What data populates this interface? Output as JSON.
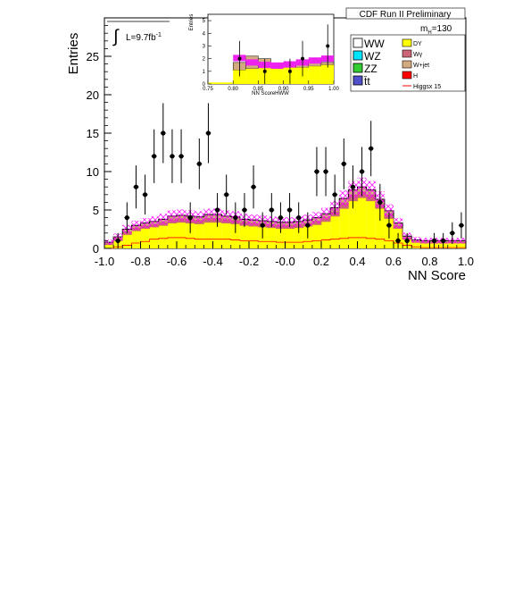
{
  "chart_data": {
    "type": "histogram",
    "header": "CDF Run II Preliminary",
    "luminosity": {
      "label": "L=9.7fb",
      "exponent": "-1"
    },
    "mass_label": {
      "m": "m",
      "sub": "H",
      "value": "=130"
    },
    "xlabel": "NN Score",
    "ylabel": "Entries",
    "xlim": [
      -1.0,
      1.0
    ],
    "ylim": [
      0,
      30
    ],
    "xticks": [
      "-1.0",
      "-0.8",
      "-0.6",
      "-0.4",
      "-0.2",
      "-0.0",
      "0.2",
      "0.4",
      "0.6",
      "0.8",
      "1.0"
    ],
    "yticks": [
      "0",
      "5",
      "10",
      "15",
      "20",
      "25"
    ],
    "bins": 40,
    "stack_total": [
      0.8,
      1.5,
      2.5,
      3.0,
      3.3,
      3.5,
      3.8,
      4.2,
      4.3,
      4.2,
      4.1,
      4.4,
      4.4,
      4.2,
      4.1,
      3.8,
      3.7,
      3.6,
      3.5,
      3.4,
      3.4,
      3.5,
      3.7,
      4.0,
      4.5,
      5.3,
      6.5,
      7.6,
      8.0,
      7.6,
      6.4,
      4.9,
      3.3,
      1.6,
      1.1,
      1.0,
      1.0,
      1.0,
      1.0,
      1.0
    ],
    "dy": [
      0.5,
      1.0,
      1.8,
      2.3,
      2.6,
      2.8,
      3.0,
      3.3,
      3.4,
      3.3,
      3.2,
      3.4,
      3.4,
      3.3,
      3.2,
      3.0,
      2.9,
      2.8,
      2.7,
      2.6,
      2.6,
      2.7,
      2.9,
      3.1,
      3.5,
      4.2,
      5.2,
      6.2,
      6.6,
      6.2,
      5.2,
      3.9,
      2.6,
      1.2,
      0.8,
      0.7,
      0.7,
      0.7,
      0.7,
      0.7
    ],
    "signal": [
      0.0,
      0.2,
      0.4,
      0.7,
      0.9,
      1.2,
      1.3,
      1.4,
      1.4,
      1.3,
      1.2,
      1.2,
      1.2,
      1.2,
      1.1,
      1.0,
      1.0,
      0.9,
      0.9,
      0.8,
      0.8,
      0.8,
      0.9,
      1.0,
      1.1,
      1.2,
      1.3,
      1.4,
      1.4,
      1.3,
      1.2,
      1.0,
      0.7,
      0.4,
      0.2,
      0.1,
      0.1,
      0.1,
      0.1,
      0.1
    ],
    "data_points": [
      {
        "x": -0.925,
        "y": 1,
        "err": 1.0
      },
      {
        "x": -0.875,
        "y": 4,
        "err": 2.0
      },
      {
        "x": -0.825,
        "y": 8,
        "err": 2.8
      },
      {
        "x": -0.775,
        "y": 7,
        "err": 2.6
      },
      {
        "x": -0.725,
        "y": 12,
        "err": 3.5
      },
      {
        "x": -0.675,
        "y": 15,
        "err": 3.9
      },
      {
        "x": -0.625,
        "y": 12,
        "err": 3.5
      },
      {
        "x": -0.575,
        "y": 12,
        "err": 3.5
      },
      {
        "x": -0.525,
        "y": 4,
        "err": 2.0
      },
      {
        "x": -0.475,
        "y": 11,
        "err": 3.3
      },
      {
        "x": -0.425,
        "y": 15,
        "err": 3.9
      },
      {
        "x": -0.375,
        "y": 5,
        "err": 2.2
      },
      {
        "x": -0.325,
        "y": 7,
        "err": 2.6
      },
      {
        "x": -0.275,
        "y": 4,
        "err": 2.0
      },
      {
        "x": -0.225,
        "y": 5,
        "err": 2.2
      },
      {
        "x": -0.175,
        "y": 8,
        "err": 2.8
      },
      {
        "x": -0.125,
        "y": 3,
        "err": 1.7
      },
      {
        "x": -0.075,
        "y": 5,
        "err": 2.2
      },
      {
        "x": -0.025,
        "y": 4,
        "err": 2.0
      },
      {
        "x": 0.025,
        "y": 5,
        "err": 2.2
      },
      {
        "x": 0.075,
        "y": 4,
        "err": 2.0
      },
      {
        "x": 0.125,
        "y": 3,
        "err": 1.7
      },
      {
        "x": 0.175,
        "y": 10,
        "err": 3.2
      },
      {
        "x": 0.225,
        "y": 10,
        "err": 3.2
      },
      {
        "x": 0.275,
        "y": 7,
        "err": 2.6
      },
      {
        "x": 0.325,
        "y": 11,
        "err": 3.3
      },
      {
        "x": 0.375,
        "y": 8,
        "err": 2.8
      },
      {
        "x": 0.425,
        "y": 10,
        "err": 3.2
      },
      {
        "x": 0.475,
        "y": 13,
        "err": 3.6
      },
      {
        "x": 0.525,
        "y": 6,
        "err": 2.4
      },
      {
        "x": 0.575,
        "y": 3,
        "err": 1.7
      },
      {
        "x": 0.625,
        "y": 1,
        "err": 1.0
      },
      {
        "x": 0.675,
        "y": 1,
        "err": 1.0
      },
      {
        "x": 0.825,
        "y": 1,
        "err": 1.0
      },
      {
        "x": 0.875,
        "y": 1,
        "err": 1.0
      },
      {
        "x": 0.925,
        "y": 2,
        "err": 1.4
      },
      {
        "x": 0.975,
        "y": 3,
        "err": 1.7
      }
    ],
    "legend": [
      {
        "label": "WW",
        "color": "#ffffff"
      },
      {
        "label": "WZ",
        "color": "#00e5ff"
      },
      {
        "label": "ZZ",
        "color": "#33cc33"
      },
      {
        "label": "t̄t",
        "color": "#5050cc"
      },
      {
        "label": "DY",
        "color": "#ffff00"
      },
      {
        "label": "Wγ",
        "color": "#cc6677"
      },
      {
        "label": "W+jet",
        "color": "#d4aa80"
      },
      {
        "label": "H",
        "color": "#ff0000"
      },
      {
        "label": "Higgsx 15",
        "color": "#ff0000"
      }
    ],
    "inset": {
      "xlabel": "NN ScoreHWW",
      "ylabel": "Entries",
      "xlim": [
        0.75,
        1.0
      ],
      "ylim": [
        0,
        5.5
      ],
      "xticks": [
        "0.75",
        "0.80",
        "0.85",
        "0.90",
        "0.95",
        "1.00"
      ],
      "yticks": [
        "0",
        "1",
        "2",
        "3",
        "4",
        "5"
      ],
      "bin_edges": [
        0.8,
        0.825,
        0.85,
        0.875,
        0.9,
        0.925,
        0.95,
        0.975,
        1.0
      ],
      "stack_total": [
        1.7,
        2.2,
        2.0,
        1.6,
        1.6,
        1.7,
        1.9,
        1.7
      ],
      "stack_dy": [
        1.1,
        1.2,
        1.3,
        1.3,
        1.3,
        1.3,
        1.4,
        1.5
      ],
      "band_center": [
        2.05,
        1.7,
        1.5,
        1.45,
        1.55,
        1.7,
        1.85,
        2.0
      ],
      "data_points": [
        {
          "x": 0.813,
          "y": 2,
          "err": 1.4
        },
        {
          "x": 0.863,
          "y": 1,
          "err": 1.0
        },
        {
          "x": 0.913,
          "y": 1,
          "err": 1.0
        },
        {
          "x": 0.938,
          "y": 2,
          "err": 1.4
        },
        {
          "x": 0.988,
          "y": 3,
          "err": 1.7
        }
      ]
    }
  }
}
